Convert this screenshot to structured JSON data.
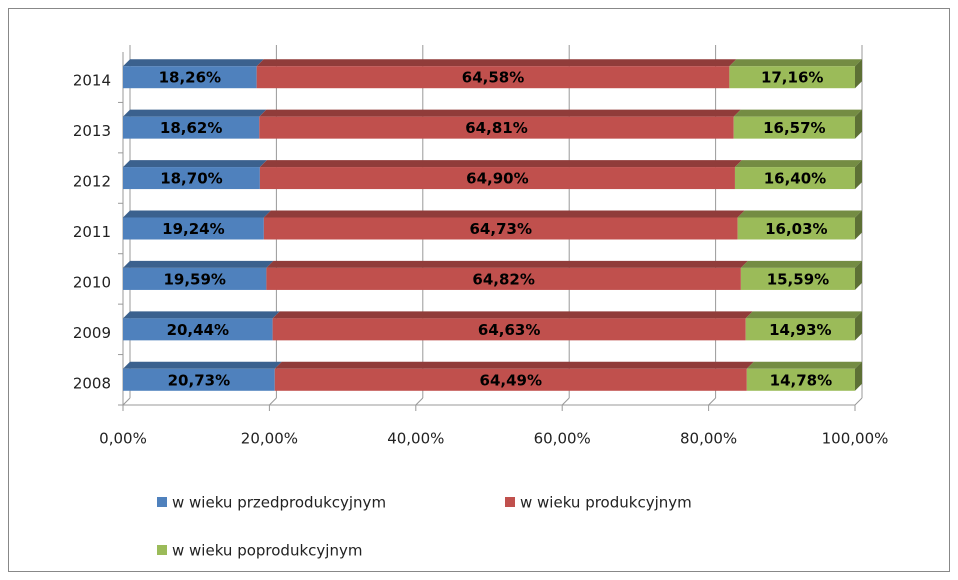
{
  "chart_data": {
    "type": "bar",
    "orientation": "horizontal",
    "stacked": "percent",
    "categories": [
      "2008",
      "2009",
      "2010",
      "2011",
      "2012",
      "2013",
      "2014"
    ],
    "series": [
      {
        "name": "w wieku przedprodukcyjnym",
        "color": "#4f81bd",
        "values": [
          20.73,
          20.44,
          19.59,
          19.24,
          18.7,
          18.62,
          18.26
        ],
        "value_labels": [
          "20,73%",
          "20,44%",
          "19,59%",
          "19,24%",
          "18,70%",
          "18,62%",
          "18,26%"
        ]
      },
      {
        "name": "w wieku produkcyjnym",
        "color": "#c0504d",
        "values": [
          64.49,
          64.63,
          64.82,
          64.73,
          64.9,
          64.81,
          64.58
        ],
        "value_labels": [
          "64,49%",
          "64,63%",
          "64,82%",
          "64,73%",
          "64,90%",
          "64,81%",
          "64,58%"
        ]
      },
      {
        "name": "w wieku poprodukcyjnym",
        "color": "#9bbb59",
        "values": [
          14.78,
          14.93,
          15.59,
          16.03,
          16.4,
          16.57,
          17.16
        ],
        "value_labels": [
          "14,78%",
          "14,93%",
          "15,59%",
          "16,03%",
          "16,40%",
          "16,57%",
          "17,16%"
        ]
      }
    ],
    "xlim": [
      0,
      100
    ],
    "xticks": [
      {
        "value": 0,
        "label": "0,00%"
      },
      {
        "value": 20,
        "label": "20,00%"
      },
      {
        "value": 40,
        "label": "40,00%"
      },
      {
        "value": 60,
        "label": "60,00%"
      },
      {
        "value": 80,
        "label": "80,00%"
      },
      {
        "value": 100,
        "label": "100,00%"
      }
    ],
    "grid": true,
    "legend": "bottom"
  }
}
